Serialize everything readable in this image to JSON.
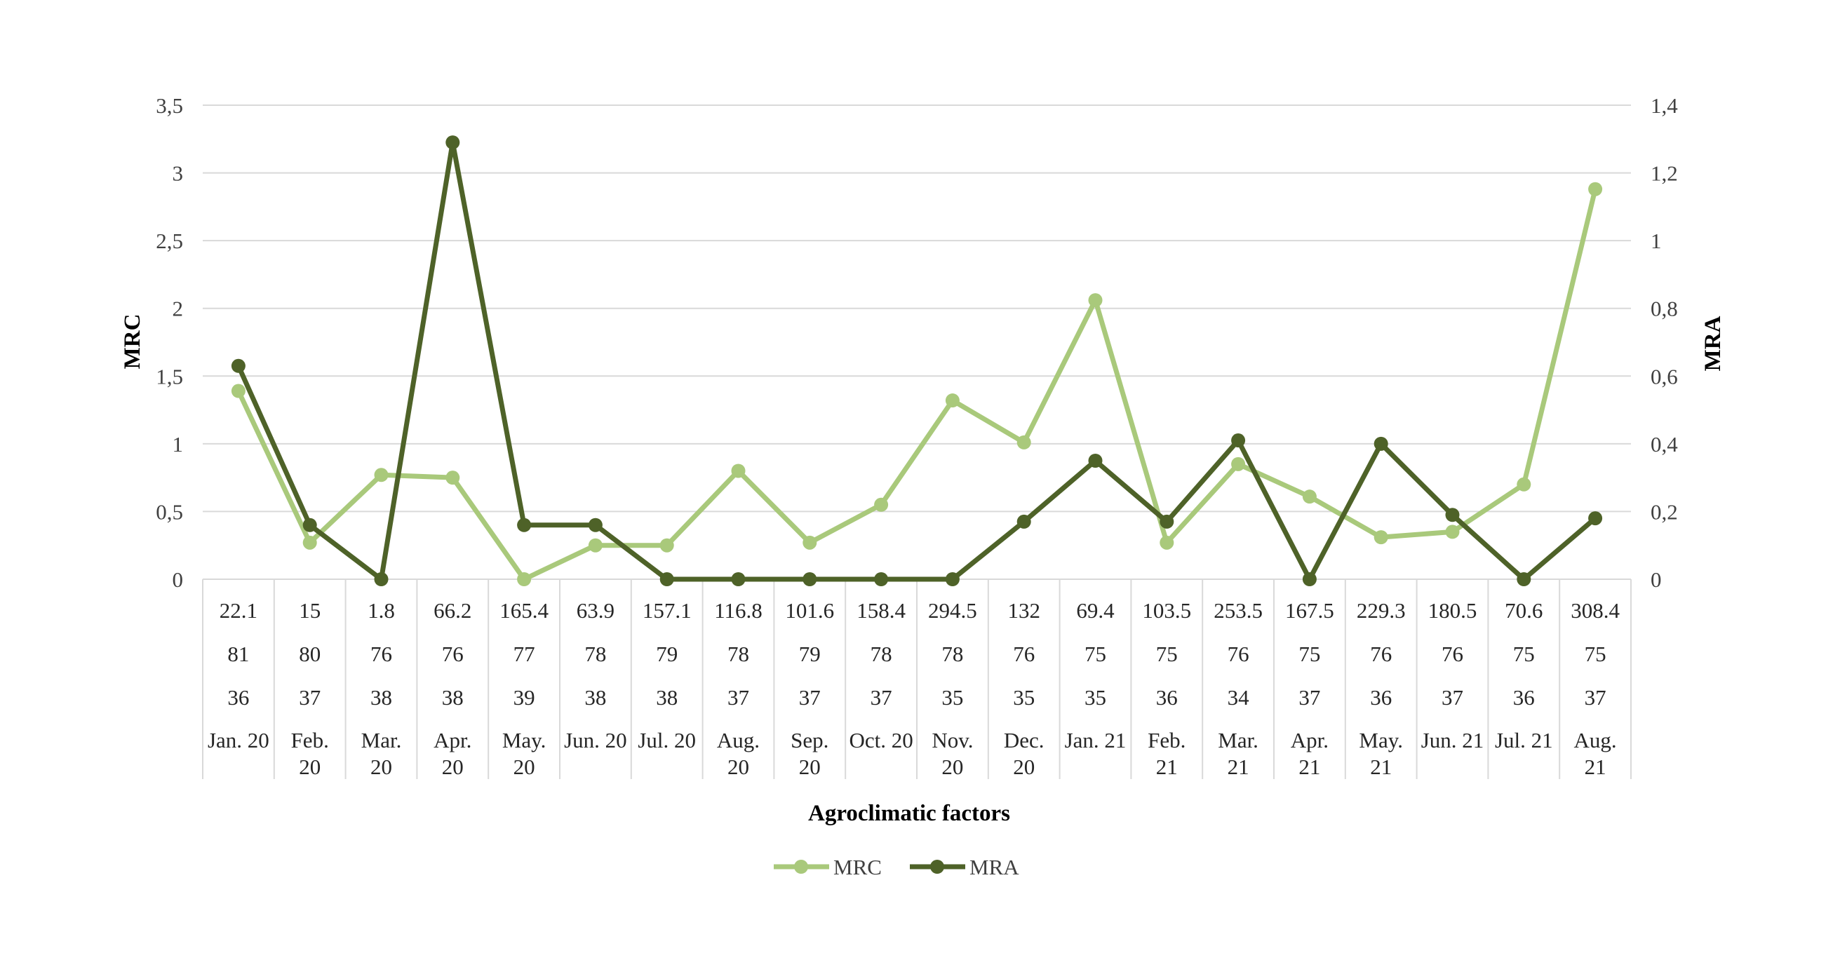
{
  "chart_data": {
    "type": "line",
    "xlabel": "Agroclimatic factors",
    "ylabel": "MRC",
    "y2label": "MRA",
    "ylim": [
      0,
      3.5
    ],
    "y2lim": [
      0,
      1.4
    ],
    "yticks": [
      "0",
      "0,5",
      "1",
      "1,5",
      "2",
      "2,5",
      "3",
      "3,5"
    ],
    "y2ticks": [
      "0",
      "0,2",
      "0,4",
      "0,6",
      "0,8",
      "1",
      "1,2",
      "1,4"
    ],
    "grid": true,
    "legend_position": "bottom",
    "categories": [
      [
        "Jan. 20"
      ],
      [
        "Feb.",
        "20"
      ],
      [
        "Mar.",
        "20"
      ],
      [
        "Apr.",
        "20"
      ],
      [
        "May.",
        "20"
      ],
      [
        "Jun. 20"
      ],
      [
        "Jul. 20"
      ],
      [
        "Aug.",
        "20"
      ],
      [
        "Sep.",
        "20"
      ],
      [
        "Oct. 20"
      ],
      [
        "Nov.",
        "20"
      ],
      [
        "Dec.",
        "20"
      ],
      [
        "Jan. 21"
      ],
      [
        "Feb.",
        "21"
      ],
      [
        "Mar.",
        "21"
      ],
      [
        "Apr.",
        "21"
      ],
      [
        "May.",
        "21"
      ],
      [
        "Jun. 21"
      ],
      [
        "Jul. 21"
      ],
      [
        "Aug.",
        "21"
      ]
    ],
    "table_rows": [
      [
        "22.1",
        "15",
        "1.8",
        "66.2",
        "165.4",
        "63.9",
        "157.1",
        "116.8",
        "101.6",
        "158.4",
        "294.5",
        "132",
        "69.4",
        "103.5",
        "253.5",
        "167.5",
        "229.3",
        "180.5",
        "70.6",
        "308.4"
      ],
      [
        "81",
        "80",
        "76",
        "76",
        "77",
        "78",
        "79",
        "78",
        "79",
        "78",
        "78",
        "76",
        "75",
        "75",
        "76",
        "75",
        "76",
        "76",
        "75",
        "75"
      ],
      [
        "36",
        "37",
        "38",
        "38",
        "39",
        "38",
        "38",
        "37",
        "37",
        "37",
        "35",
        "35",
        "35",
        "36",
        "34",
        "37",
        "36",
        "37",
        "36",
        "37"
      ]
    ],
    "series": [
      {
        "name": "MRC",
        "axis": "left",
        "color": "#a9c97b",
        "values": [
          1.39,
          0.27,
          0.77,
          0.75,
          0.0,
          0.25,
          0.25,
          0.8,
          0.27,
          0.55,
          1.32,
          1.01,
          2.06,
          0.27,
          0.85,
          0.61,
          0.31,
          0.35,
          0.7,
          2.88
        ]
      },
      {
        "name": "MRA",
        "axis": "right",
        "color": "#4e6228",
        "values": [
          0.63,
          0.16,
          0.0,
          1.29,
          0.16,
          0.16,
          0.0,
          0.0,
          0.0,
          0.0,
          0.0,
          0.17,
          0.35,
          0.17,
          0.41,
          0.0,
          0.4,
          0.19,
          0.0,
          0.18
        ]
      }
    ]
  }
}
